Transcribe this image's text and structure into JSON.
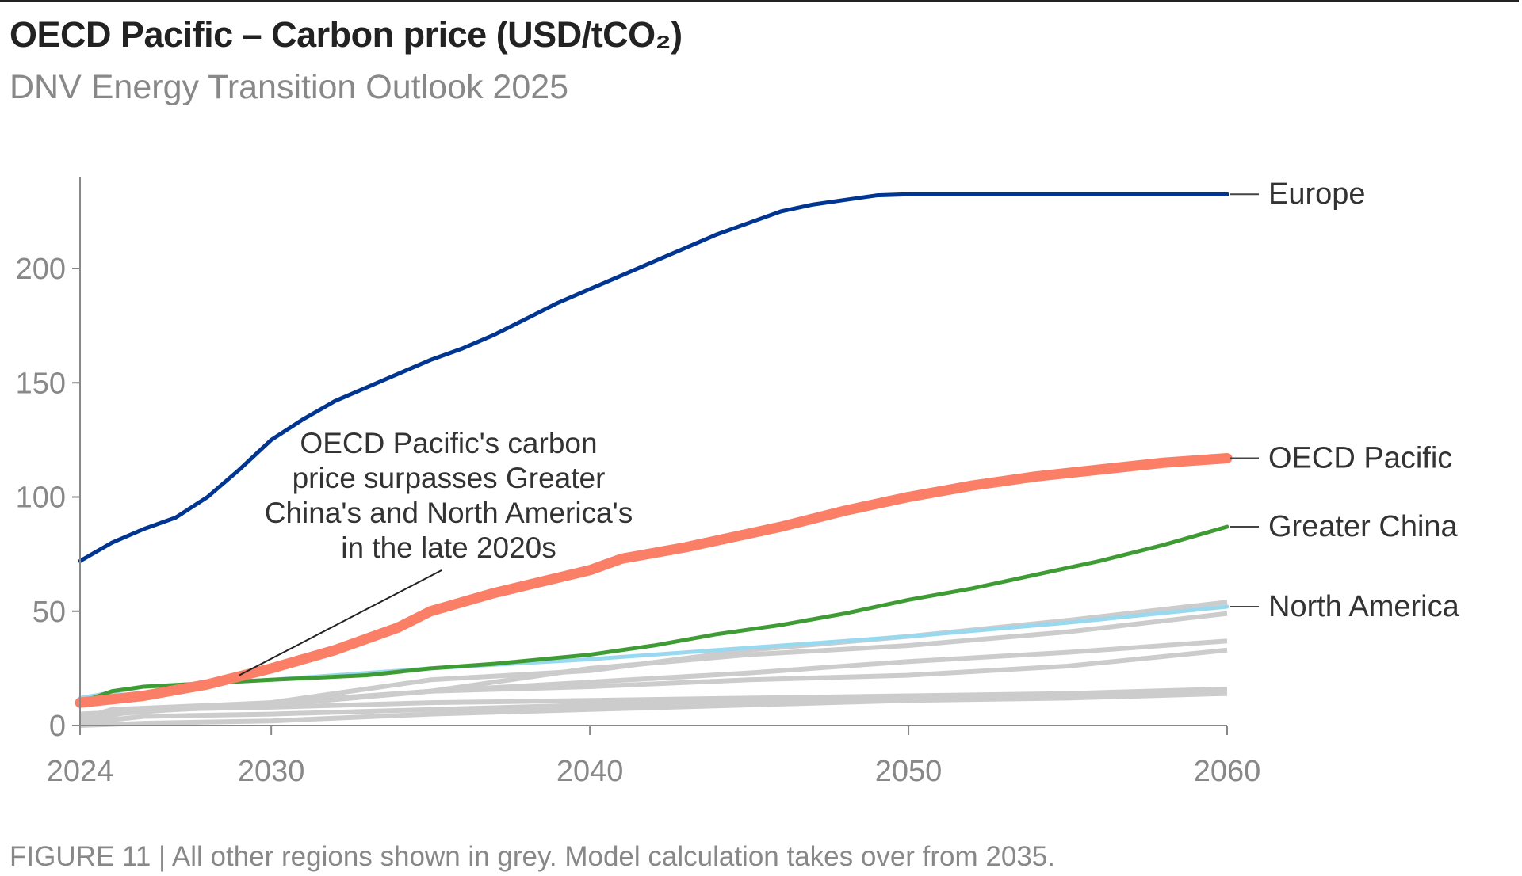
{
  "title": "OECD Pacific – Carbon price (USD/tCO₂)",
  "subtitle": "DNV Energy Transition Outlook 2025",
  "caption": "FIGURE 11 | All other regions shown in grey. Model calculation takes over from 2035.",
  "chart_data": {
    "type": "line",
    "title": "OECD Pacific – Carbon price (USD/tCO₂)",
    "xlim": [
      2024,
      2060
    ],
    "ylim": [
      0,
      240
    ],
    "x_ticks": [
      "2024",
      "2030",
      "2040",
      "2050",
      "2060"
    ],
    "y_ticks": [
      "0",
      "50",
      "100",
      "150",
      "200"
    ],
    "grid": false,
    "legend": "direct labels at right end of lines",
    "annotation": {
      "lines": [
        "OECD Pacific's carbon",
        "price surpasses Greater",
        "China's and North America's",
        "in the late 2020s"
      ],
      "points_to": [
        2029,
        22
      ]
    },
    "series": [
      {
        "name": "Europe",
        "color": "#003591",
        "x": [
          2024,
          2025,
          2026,
          2027,
          2028,
          2029,
          2030,
          2031,
          2032,
          2033,
          2034,
          2035,
          2036,
          2037,
          2038,
          2039,
          2040,
          2041,
          2042,
          2043,
          2044,
          2045,
          2046,
          2047,
          2048,
          2049,
          2050,
          2060
        ],
        "y": [
          72,
          80,
          86,
          91,
          100,
          112,
          125,
          134,
          142,
          148,
          154,
          160,
          165,
          171,
          178,
          185,
          191,
          197,
          203,
          209,
          215,
          220,
          225,
          228,
          230,
          232,
          232.5,
          232.5
        ]
      },
      {
        "name": "OECD Pacific",
        "color": "#fa7f66",
        "x": [
          2024,
          2026,
          2028,
          2030,
          2032,
          2034,
          2035,
          2037,
          2040,
          2041,
          2043,
          2046,
          2048,
          2050,
          2052,
          2054,
          2056,
          2058,
          2060
        ],
        "y": [
          10,
          13,
          18,
          25,
          33,
          43,
          50,
          58,
          68,
          73,
          78,
          87,
          94,
          100,
          105,
          109,
          112,
          115,
          117
        ]
      },
      {
        "name": "Greater China",
        "color": "#3f9c35",
        "x": [
          2024,
          2025,
          2026,
          2028,
          2030,
          2033,
          2035,
          2037,
          2040,
          2042,
          2044,
          2046,
          2048,
          2050,
          2052,
          2054,
          2056,
          2058,
          2060
        ],
        "y": [
          10,
          15,
          17,
          18.5,
          20,
          22,
          25,
          27,
          31,
          35,
          40,
          44,
          49,
          55,
          60,
          66,
          72,
          79,
          87
        ]
      },
      {
        "name": "North America",
        "color": "#99d9f0",
        "x": [
          2024,
          2026,
          2030,
          2035,
          2040,
          2045,
          2050,
          2055,
          2060
        ],
        "y": [
          12,
          17,
          20,
          25,
          29,
          34,
          39,
          45,
          52
        ]
      },
      {
        "color": "#cccccc",
        "x": [
          2024,
          2025,
          2030,
          2035,
          2040,
          2045,
          2050,
          2055,
          2060
        ],
        "y": [
          3,
          7,
          10,
          20,
          24,
          33,
          39,
          46,
          54
        ]
      },
      {
        "color": "#cccccc",
        "x": [
          2024,
          2030,
          2035,
          2040,
          2045,
          2050,
          2055,
          2060
        ],
        "y": [
          5,
          9,
          15,
          25,
          31,
          35,
          41,
          49
        ]
      },
      {
        "color": "#cccccc",
        "x": [
          2024,
          2030,
          2035,
          2040,
          2045,
          2050,
          2055,
          2060
        ],
        "y": [
          4,
          10,
          15,
          19,
          23,
          28,
          32,
          37
        ]
      },
      {
        "color": "#cccccc",
        "x": [
          2024,
          2030,
          2035,
          2040,
          2045,
          2050,
          2055,
          2060
        ],
        "y": [
          5,
          9,
          15,
          17,
          20,
          22,
          26,
          33
        ]
      },
      {
        "color": "#cccccc",
        "x": [
          2024,
          2026,
          2030,
          2035,
          2040,
          2045,
          2050,
          2055,
          2060
        ],
        "y": [
          2,
          7,
          8,
          10,
          11,
          12,
          13,
          14,
          16
        ]
      },
      {
        "color": "#cccccc",
        "x": [
          2024,
          2026,
          2030,
          2035,
          2040,
          2045,
          2050,
          2055,
          2060
        ],
        "y": [
          1,
          4,
          5,
          7,
          9,
          11,
          12,
          13,
          14
        ]
      },
      {
        "color": "#cccccc",
        "x": [
          2024,
          2026,
          2030,
          2035,
          2040,
          2045,
          2050,
          2055,
          2060
        ],
        "y": [
          0,
          1,
          2,
          5,
          7,
          9,
          11,
          12,
          14
        ]
      }
    ]
  }
}
